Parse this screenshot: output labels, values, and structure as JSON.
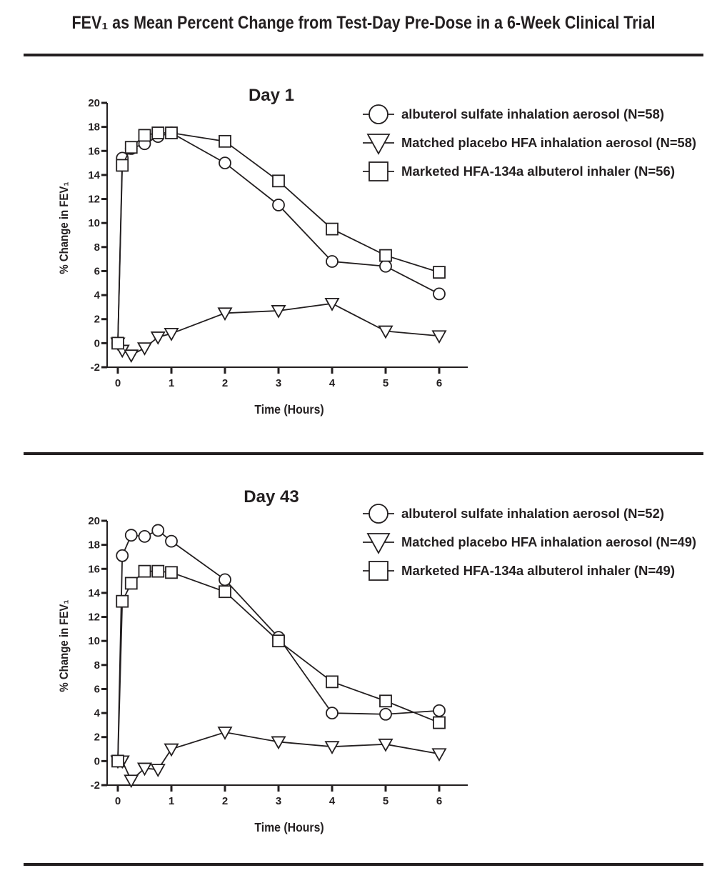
{
  "title": "FEV₁ as Mean Percent Change from Test-Day Pre-Dose in a 6-Week Clinical Trial",
  "chart_data": [
    {
      "type": "line",
      "title": "Day 1",
      "xlabel": "Time (Hours)",
      "ylabel": "% Change in FEV₁",
      "xlim": [
        0,
        6.5
      ],
      "ylim": [
        -2,
        20
      ],
      "xticks": [
        0,
        1,
        2,
        3,
        4,
        5,
        6
      ],
      "yticks": [
        -2,
        0,
        2,
        4,
        6,
        8,
        10,
        12,
        14,
        16,
        18,
        20
      ],
      "grid": false,
      "legend": "top-right",
      "x": [
        0,
        0.083,
        0.25,
        0.5,
        0.75,
        1,
        2,
        3,
        4,
        5,
        6
      ],
      "series": [
        {
          "name": "albuterol sulfate inhalation aerosol (N=58)",
          "marker": "circle",
          "values": [
            0,
            15.4,
            16.2,
            16.6,
            17.2,
            17.5,
            15.0,
            11.5,
            6.8,
            6.4,
            4.1
          ]
        },
        {
          "name": "Matched placebo HFA inhalation aerosol (N=58)",
          "marker": "triangle-down",
          "values": [
            0,
            -0.6,
            -1.0,
            -0.4,
            0.5,
            0.8,
            2.5,
            2.7,
            3.3,
            1.0,
            0.6
          ]
        },
        {
          "name": "Marketed HFA-134a albuterol inhaler (N=56)",
          "marker": "square",
          "values": [
            0,
            14.8,
            16.3,
            17.3,
            17.5,
            17.5,
            16.8,
            13.5,
            9.5,
            7.3,
            5.9
          ]
        }
      ]
    },
    {
      "type": "line",
      "title": "Day 43",
      "xlabel": "Time (Hours)",
      "ylabel": "% Change in FEV₁",
      "xlim": [
        0,
        6.5
      ],
      "ylim": [
        -2,
        20
      ],
      "xticks": [
        0,
        1,
        2,
        3,
        4,
        5,
        6
      ],
      "yticks": [
        -2,
        0,
        2,
        4,
        6,
        8,
        10,
        12,
        14,
        16,
        18,
        20
      ],
      "grid": false,
      "legend": "top-right",
      "x": [
        0,
        0.083,
        0.25,
        0.5,
        0.75,
        1,
        2,
        3,
        4,
        5,
        6
      ],
      "series": [
        {
          "name": "albuterol sulfate inhalation aerosol (N=52)",
          "marker": "circle",
          "values": [
            0,
            17.1,
            18.8,
            18.7,
            19.2,
            18.3,
            15.1,
            10.3,
            4.0,
            3.9,
            4.2
          ]
        },
        {
          "name": "Matched placebo HFA inhalation aerosol (N=49)",
          "marker": "triangle-down",
          "values": [
            0,
            0,
            -1.6,
            -0.6,
            -0.7,
            1.0,
            2.4,
            1.6,
            1.2,
            1.4,
            0.6
          ]
        },
        {
          "name": "Marketed HFA-134a albuterol inhaler (N=49)",
          "marker": "square",
          "values": [
            0,
            13.3,
            14.8,
            15.8,
            15.8,
            15.7,
            14.1,
            10.0,
            6.6,
            5.0,
            3.2
          ]
        }
      ]
    }
  ],
  "colors": {
    "ink": "#231f20",
    "background": "#ffffff"
  }
}
